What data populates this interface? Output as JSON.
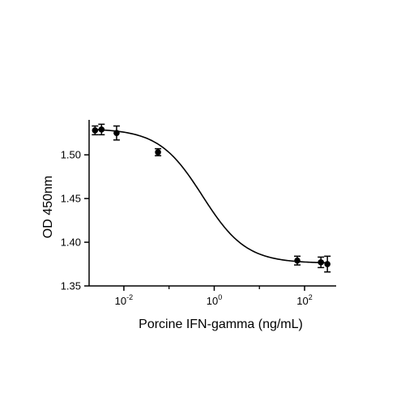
{
  "chart_data": {
    "type": "scatter",
    "title": "",
    "xlabel": "Porcine IFN-gamma (ng/mL)",
    "ylabel": "OD 450nm",
    "x_scale": "log10",
    "xlim": [
      0.0017,
      500
    ],
    "ylim": [
      1.35,
      1.54
    ],
    "x_ticks": [
      {
        "value": 0.01,
        "base": "10",
        "exponent": "-2"
      },
      {
        "value": 1,
        "base": "10",
        "exponent": "0"
      },
      {
        "value": 100,
        "base": "10",
        "exponent": "2"
      }
    ],
    "y_ticks": [
      {
        "value": 1.35,
        "label": "1.35"
      },
      {
        "value": 1.4,
        "label": "1.40"
      },
      {
        "value": 1.45,
        "label": "1.45"
      },
      {
        "value": 1.5,
        "label": "1.50"
      }
    ],
    "grid": false,
    "legend": false,
    "points": [
      {
        "x": 0.0023,
        "y": 1.528,
        "err": 0.005
      },
      {
        "x": 0.0032,
        "y": 1.529,
        "err": 0.006
      },
      {
        "x": 0.0069,
        "y": 1.525,
        "err": 0.008
      },
      {
        "x": 0.057,
        "y": 1.503,
        "err": 0.004
      },
      {
        "x": 69,
        "y": 1.379,
        "err": 0.005
      },
      {
        "x": 230,
        "y": 1.377,
        "err": 0.006
      },
      {
        "x": 320,
        "y": 1.375,
        "err": 0.009
      }
    ],
    "fit": {
      "model": "4PL",
      "top": 1.53,
      "bottom": 1.376,
      "ec50": 0.55,
      "hill": 0.9
    },
    "colors": {
      "marker": "#000000",
      "line": "#000000"
    }
  }
}
